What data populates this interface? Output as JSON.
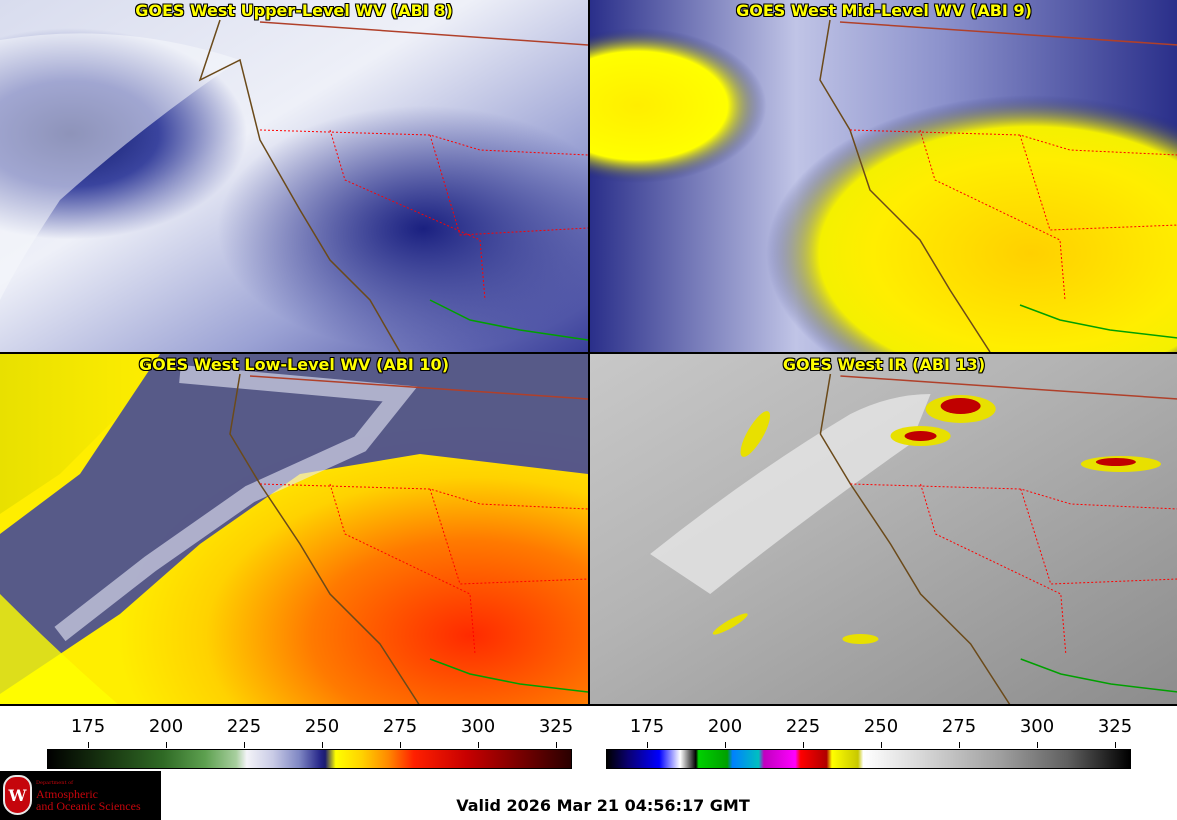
{
  "panels": [
    {
      "title": "GOES West Upper-Level WV (ABI 8)"
    },
    {
      "title": "GOES West Mid-Level WV (ABI 9)"
    },
    {
      "title": "GOES West Low-Level WV (ABI 10)"
    },
    {
      "title": "GOES West IR (ABI 13)"
    }
  ],
  "colorbars": [
    {
      "ticks": [
        "175",
        "200",
        "225",
        "250",
        "275",
        "300",
        "325"
      ]
    },
    {
      "ticks": [
        "175",
        "200",
        "225",
        "250",
        "275",
        "300",
        "325"
      ]
    }
  ],
  "logo": {
    "dept": "Department of",
    "line1": "Atmospheric",
    "line2": "and Oceanic Sciences",
    "seal": "W"
  },
  "valid_text": "Valid 2026 Mar 21 04:56:17 GMT",
  "colors": {
    "title_text": "#ffff00",
    "state_borders": "#ff0000",
    "coastline": "#6b4a1a",
    "mexico_border": "#00a000",
    "logo_red": "#c5050c"
  },
  "icons": [
    "satellite-wv-image",
    "satellite-ir-image",
    "uw-seal-icon"
  ]
}
